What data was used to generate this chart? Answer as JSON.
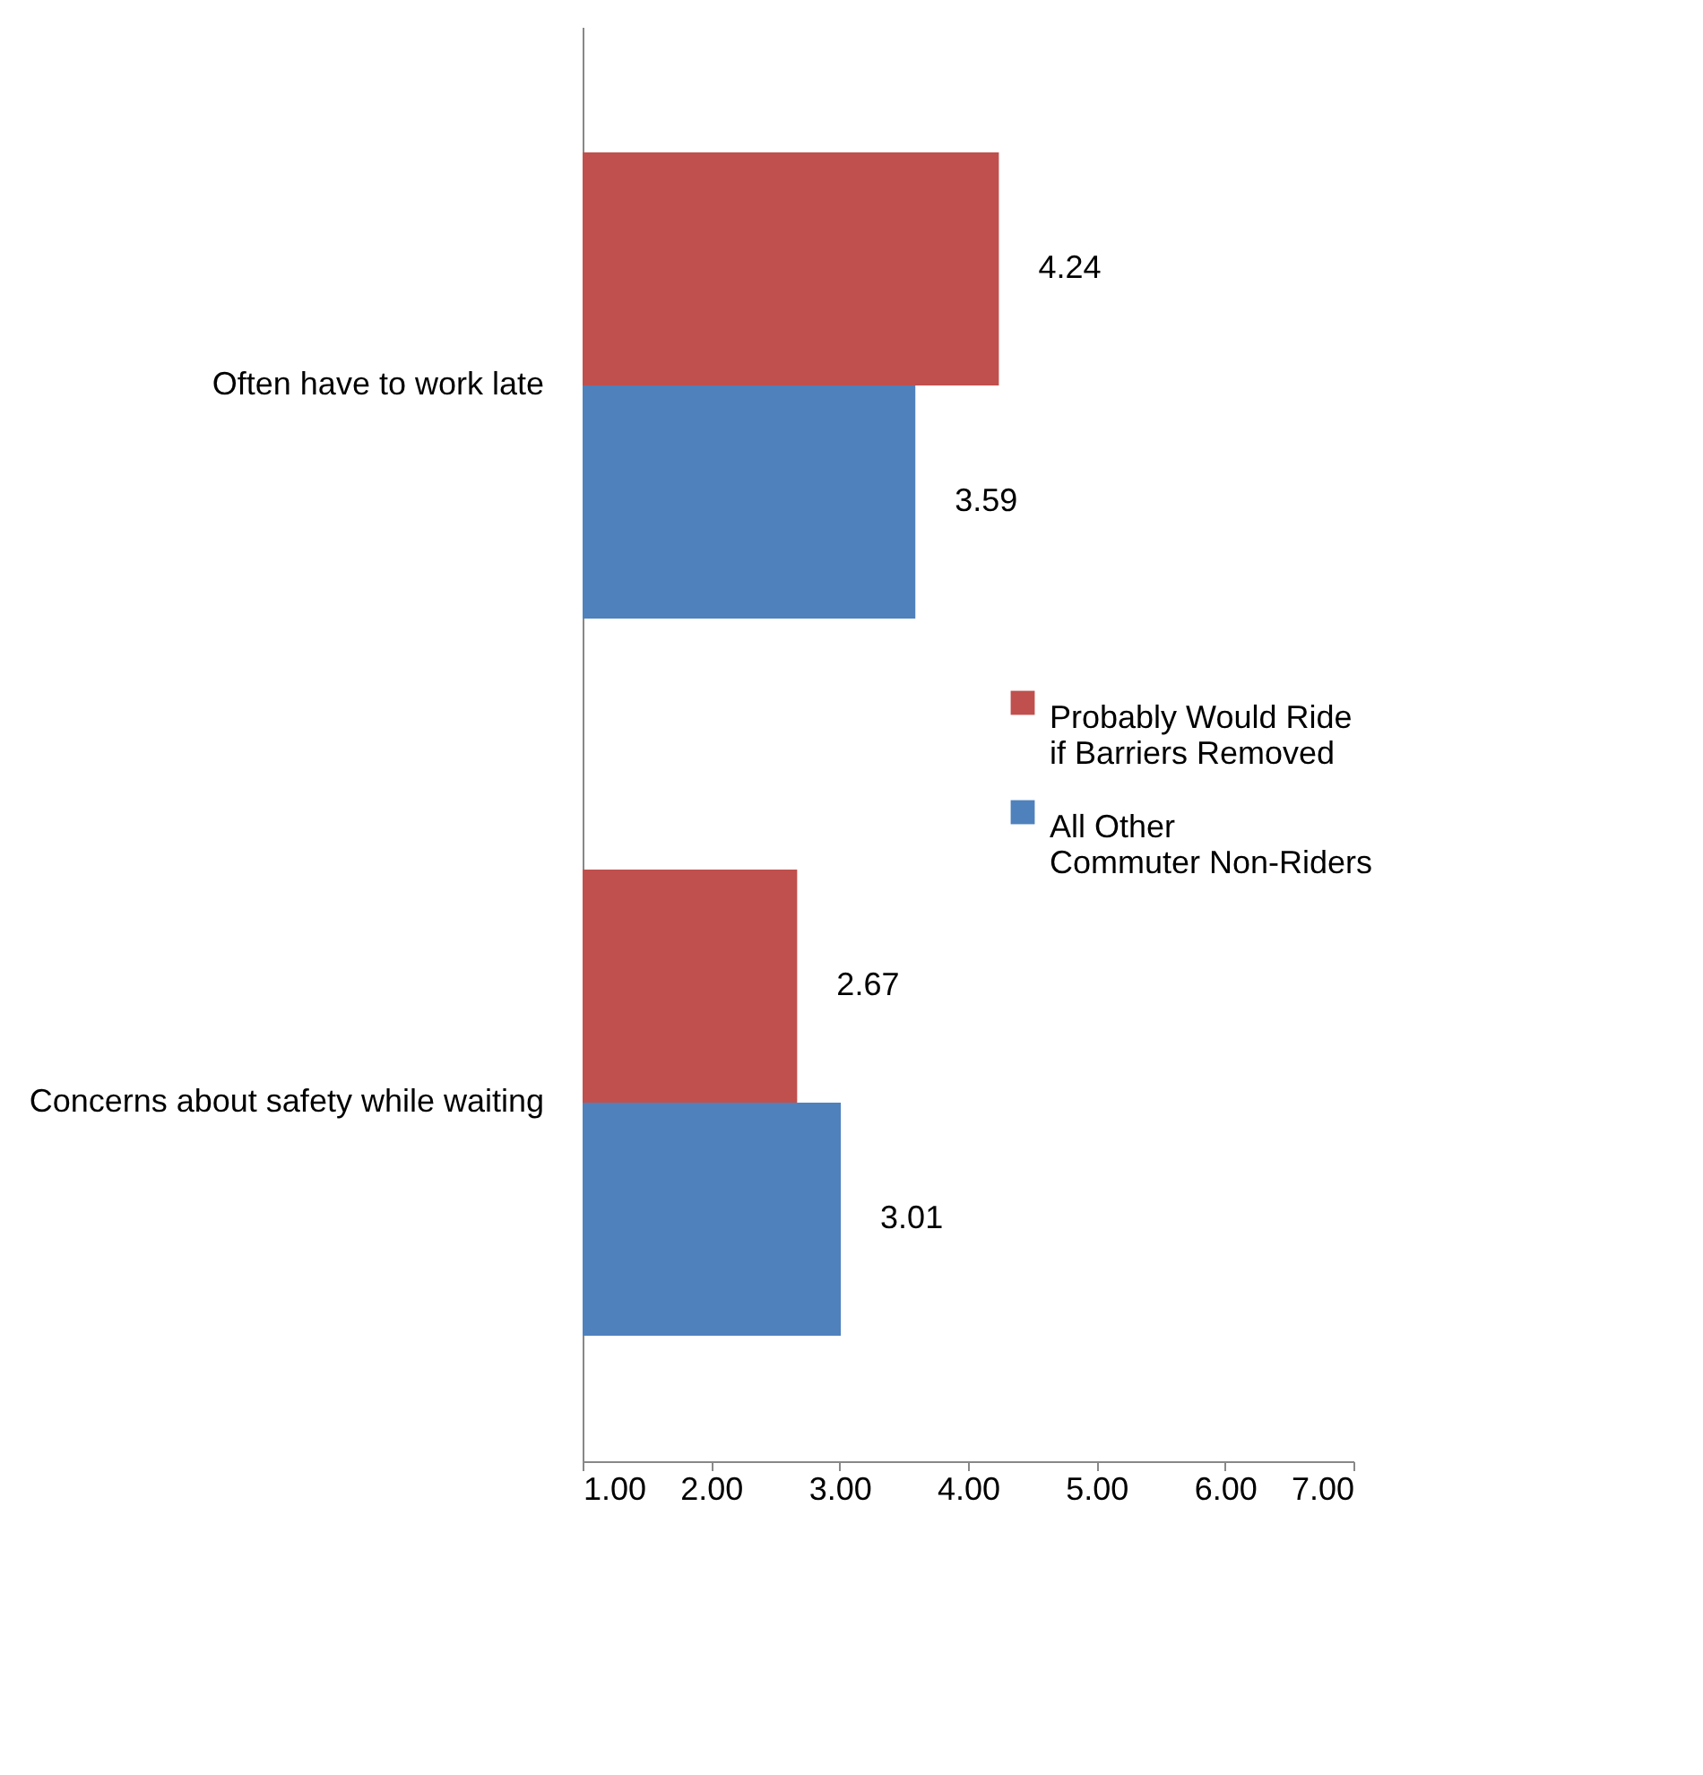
{
  "chart_data": {
    "type": "bar",
    "orientation": "horizontal",
    "categories": [
      "Often have to work late",
      "Concerns about safety while waiting"
    ],
    "series": [
      {
        "name": "Probably Would Ride if Barriers Removed",
        "color": "#c0504d",
        "values": [
          4.24,
          2.67
        ]
      },
      {
        "name": "All Other Commuter Non-Riders",
        "color": "#4f81bd",
        "values": [
          3.59,
          3.01
        ]
      }
    ],
    "xlim": [
      1,
      7
    ],
    "xticks": [
      {
        "value": 1,
        "label": "1.00"
      },
      {
        "value": 2,
        "label": "2.00"
      },
      {
        "value": 3,
        "label": "3.00"
      },
      {
        "value": 4,
        "label": "4.00"
      },
      {
        "value": 5,
        "label": "5.00"
      },
      {
        "value": 6,
        "label": "6.00"
      },
      {
        "value": 7,
        "label": "7.00"
      }
    ],
    "data_labels": true,
    "grid": false,
    "legend": "right"
  }
}
